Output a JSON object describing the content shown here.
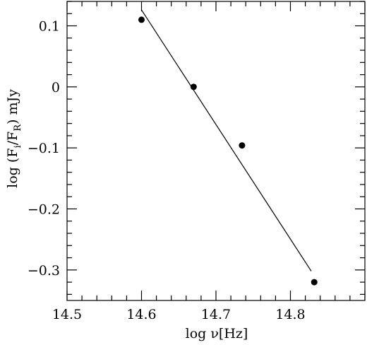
{
  "chart_data": {
    "type": "scatter",
    "xlabel": "log ν[Hz]",
    "ylabel_main": "log (F",
    "ylabel_sub_i": "i",
    "ylabel_mid": "/F",
    "ylabel_sub_R": "R",
    "ylabel_unit": ") mJy",
    "xlim": [
      14.5,
      14.9
    ],
    "ylim": [
      -0.35,
      0.14
    ],
    "x_ticks_major": [
      14.5,
      14.6,
      14.7,
      14.8
    ],
    "x_tick_labels": [
      "14.5",
      "14.6",
      "14.7",
      "14.8"
    ],
    "y_ticks_major": [
      0.1,
      0,
      -0.1,
      -0.2,
      -0.3
    ],
    "y_tick_labels": [
      "0.1",
      "0",
      "−0.1",
      "−0.2",
      "−0.3"
    ],
    "points": [
      {
        "x": 14.6,
        "y": 0.11
      },
      {
        "x": 14.67,
        "y": 0.0
      },
      {
        "x": 14.735,
        "y": -0.096
      },
      {
        "x": 14.832,
        "y": -0.32
      }
    ],
    "fit_line": {
      "x": [
        14.6,
        14.828
      ],
      "y": [
        0.126,
        -0.302
      ]
    },
    "grid": false,
    "legend": "none"
  }
}
